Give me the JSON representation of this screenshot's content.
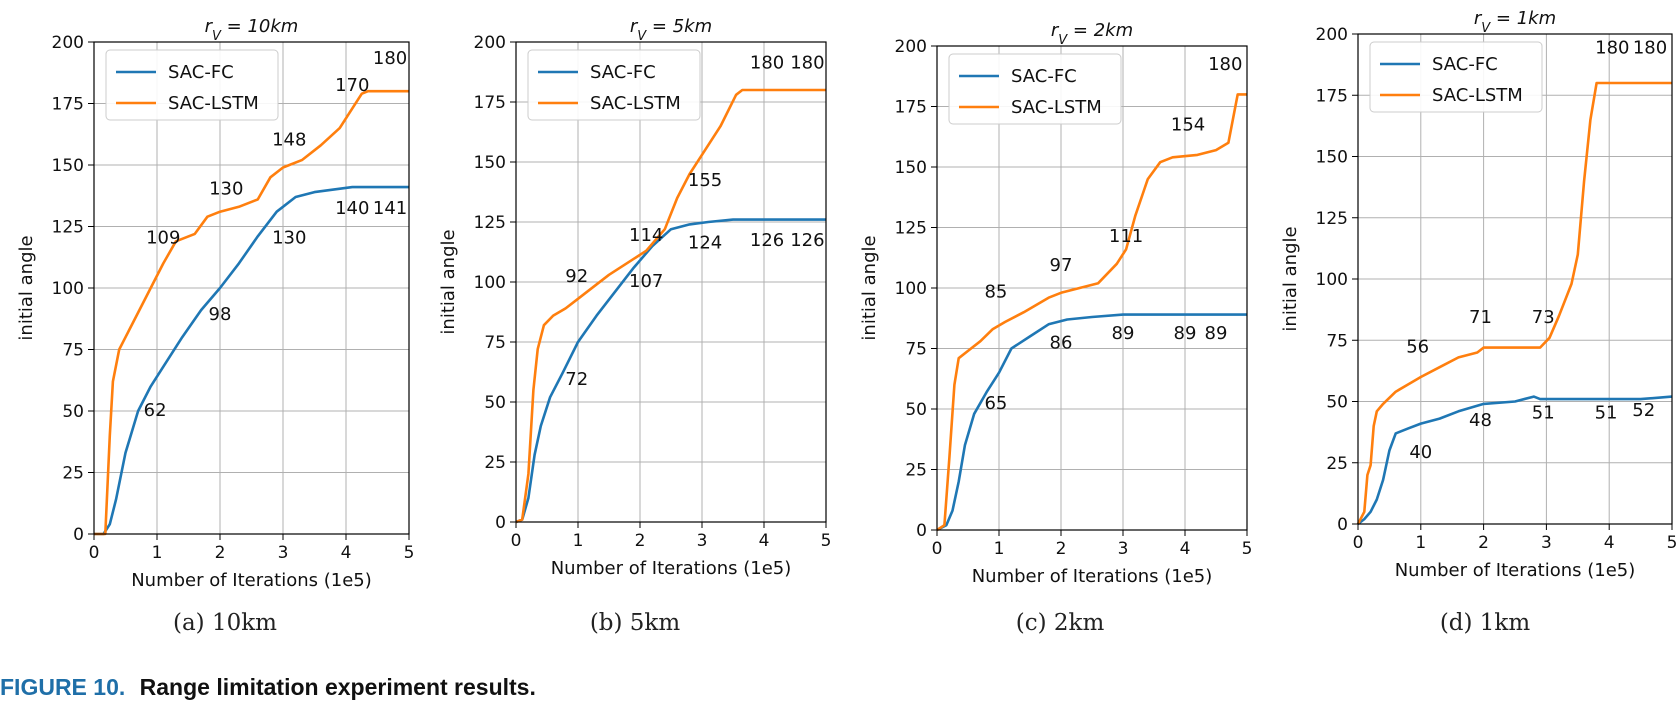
{
  "figure": {
    "caption_label": "FIGURE 10.",
    "caption_text": "Range limitation experiment results."
  },
  "colors": {
    "sac_fc": "#1f77b4",
    "sac_lstm": "#ff7f0e",
    "grid": "#b0b0b0",
    "axis": "#000000"
  },
  "chart_data": [
    {
      "type": "line",
      "subcaption": "(a)  10km",
      "title": "r_V = 10km",
      "xlabel": "Number of Iterations (1e5)",
      "ylabel": "initial angle",
      "xlim": [
        0,
        5
      ],
      "ylim": [
        0,
        200
      ],
      "xticks": [
        0,
        1,
        2,
        3,
        4,
        5
      ],
      "yticks": [
        0,
        25,
        50,
        75,
        100,
        125,
        150,
        175,
        200
      ],
      "grid": true,
      "legend": "top-left",
      "series": [
        {
          "name": "SAC-FC",
          "x": [
            0,
            0.15,
            0.25,
            0.35,
            0.5,
            0.7,
            0.9,
            1.1,
            1.4,
            1.7,
            2.0,
            2.3,
            2.6,
            2.9,
            3.2,
            3.5,
            3.8,
            4.1,
            4.5,
            5.0
          ],
          "y": [
            0,
            0,
            4,
            14,
            33,
            50,
            60,
            68,
            80,
            91,
            100,
            110,
            121,
            131,
            137,
            139,
            140,
            141,
            141,
            141
          ]
        },
        {
          "name": "SAC-LSTM",
          "x": [
            0,
            0.18,
            0.25,
            0.3,
            0.4,
            0.5,
            0.7,
            0.9,
            1.1,
            1.3,
            1.6,
            1.8,
            2.0,
            2.3,
            2.6,
            2.8,
            3.0,
            3.3,
            3.6,
            3.9,
            4.1,
            4.25,
            4.35,
            4.6,
            5.0
          ],
          "y": [
            0,
            0,
            40,
            62,
            75,
            80,
            90,
            100,
            110,
            119,
            122,
            129,
            131,
            133,
            136,
            145,
            149,
            152,
            158,
            165,
            173,
            179,
            180,
            180,
            180
          ]
        }
      ],
      "annotations": [
        {
          "text": "62",
          "x": 0.97,
          "y": 48
        },
        {
          "text": "98",
          "x": 2.0,
          "y": 87
        },
        {
          "text": "109",
          "x": 1.1,
          "y": 118
        },
        {
          "text": "130",
          "x": 2.1,
          "y": 138
        },
        {
          "text": "130",
          "x": 3.1,
          "y": 118
        },
        {
          "text": "148",
          "x": 3.1,
          "y": 158
        },
        {
          "text": "170",
          "x": 4.1,
          "y": 180
        },
        {
          "text": "140",
          "x": 4.1,
          "y": 130
        },
        {
          "text": "141",
          "x": 4.7,
          "y": 130
        },
        {
          "text": "180",
          "x": 4.7,
          "y": 191
        }
      ]
    },
    {
      "type": "line",
      "subcaption": "(b)  5km",
      "title": "r_V = 5km",
      "xlabel": "Number of Iterations (1e5)",
      "ylabel": "initial angle",
      "xlim": [
        0,
        5
      ],
      "ylim": [
        0,
        200
      ],
      "xticks": [
        0,
        1,
        2,
        3,
        4,
        5
      ],
      "yticks": [
        0,
        25,
        50,
        75,
        100,
        125,
        150,
        175,
        200
      ],
      "grid": true,
      "legend": "top-left",
      "series": [
        {
          "name": "SAC-FC",
          "x": [
            0,
            0.1,
            0.2,
            0.3,
            0.4,
            0.55,
            0.75,
            1.0,
            1.3,
            1.6,
            1.9,
            2.2,
            2.5,
            2.8,
            3.1,
            3.5,
            4.0,
            5.0
          ],
          "y": [
            0,
            1,
            10,
            28,
            40,
            52,
            62,
            75,
            86,
            96,
            106,
            115,
            122,
            124,
            125,
            126,
            126,
            126
          ]
        },
        {
          "name": "SAC-LSTM",
          "x": [
            0,
            0.1,
            0.2,
            0.28,
            0.35,
            0.45,
            0.6,
            0.8,
            1.0,
            1.2,
            1.5,
            1.8,
            2.1,
            2.4,
            2.6,
            2.8,
            3.0,
            3.3,
            3.55,
            3.65,
            4.0,
            5.0
          ],
          "y": [
            0,
            1,
            20,
            55,
            72,
            82,
            86,
            89,
            93,
            97,
            103,
            108,
            113,
            122,
            135,
            145,
            153,
            165,
            178,
            180,
            180,
            180
          ]
        }
      ],
      "annotations": [
        {
          "text": "72",
          "x": 0.98,
          "y": 57
        },
        {
          "text": "92",
          "x": 0.98,
          "y": 100
        },
        {
          "text": "107",
          "x": 2.1,
          "y": 98
        },
        {
          "text": "114",
          "x": 2.1,
          "y": 117
        },
        {
          "text": "155",
          "x": 3.05,
          "y": 140
        },
        {
          "text": "124",
          "x": 3.05,
          "y": 114
        },
        {
          "text": "126",
          "x": 4.05,
          "y": 115
        },
        {
          "text": "126",
          "x": 4.7,
          "y": 115
        },
        {
          "text": "180",
          "x": 4.05,
          "y": 189
        },
        {
          "text": "180",
          "x": 4.7,
          "y": 189
        }
      ]
    },
    {
      "type": "line",
      "subcaption": "(c)  2km",
      "title": "r_V = 2km",
      "xlabel": "Number of Iterations (1e5)",
      "ylabel": "initial angle",
      "xlim": [
        0,
        5
      ],
      "ylim": [
        0,
        200
      ],
      "xticks": [
        0,
        1,
        2,
        3,
        4,
        5
      ],
      "yticks": [
        0,
        25,
        50,
        75,
        100,
        125,
        150,
        175,
        200
      ],
      "grid": true,
      "legend": "top-left",
      "series": [
        {
          "name": "SAC-FC",
          "x": [
            0,
            0.15,
            0.25,
            0.35,
            0.45,
            0.6,
            0.8,
            1.0,
            1.2,
            1.5,
            1.8,
            2.1,
            2.5,
            3.0,
            3.5,
            4.0,
            5.0
          ],
          "y": [
            0,
            2,
            8,
            20,
            35,
            48,
            57,
            65,
            75,
            80,
            85,
            87,
            88,
            89,
            89,
            89,
            89
          ]
        },
        {
          "name": "SAC-LSTM",
          "x": [
            0,
            0.12,
            0.2,
            0.28,
            0.35,
            0.5,
            0.7,
            0.9,
            1.1,
            1.4,
            1.8,
            2.0,
            2.3,
            2.6,
            2.9,
            3.05,
            3.2,
            3.4,
            3.6,
            3.8,
            4.2,
            4.5,
            4.7,
            4.85,
            5.0
          ],
          "y": [
            0,
            2,
            30,
            60,
            71,
            74,
            78,
            83,
            86,
            90,
            96,
            98,
            100,
            102,
            110,
            116,
            130,
            145,
            152,
            154,
            155,
            157,
            160,
            180,
            180
          ]
        }
      ],
      "annotations": [
        {
          "text": "65",
          "x": 0.95,
          "y": 50
        },
        {
          "text": "85",
          "x": 0.95,
          "y": 96
        },
        {
          "text": "86",
          "x": 2.0,
          "y": 75
        },
        {
          "text": "97",
          "x": 2.0,
          "y": 107
        },
        {
          "text": "89",
          "x": 3.0,
          "y": 79
        },
        {
          "text": "111",
          "x": 3.05,
          "y": 119
        },
        {
          "text": "89",
          "x": 4.0,
          "y": 79
        },
        {
          "text": "89",
          "x": 4.5,
          "y": 79
        },
        {
          "text": "154",
          "x": 4.05,
          "y": 165
        },
        {
          "text": "180",
          "x": 4.65,
          "y": 190
        }
      ]
    },
    {
      "type": "line",
      "subcaption": "(d)  1km",
      "title": "r_V = 1km",
      "xlabel": "Number of Iterations (1e5)",
      "ylabel": "initial angle",
      "xlim": [
        0,
        5
      ],
      "ylim": [
        0,
        200
      ],
      "xticks": [
        0,
        1,
        2,
        3,
        4,
        5
      ],
      "yticks": [
        0,
        25,
        50,
        75,
        100,
        125,
        150,
        175,
        200
      ],
      "grid": true,
      "legend": "top-left",
      "series": [
        {
          "name": "SAC-FC",
          "x": [
            0,
            0.1,
            0.2,
            0.3,
            0.4,
            0.5,
            0.6,
            0.8,
            1.0,
            1.3,
            1.6,
            2.0,
            2.5,
            2.8,
            2.9,
            3.2,
            3.5,
            4.0,
            4.5,
            5.0
          ],
          "y": [
            0,
            2,
            5,
            10,
            18,
            30,
            37,
            39,
            41,
            43,
            46,
            49,
            50,
            52,
            51,
            51,
            51,
            51,
            51,
            52
          ]
        },
        {
          "name": "SAC-LSTM",
          "x": [
            0,
            0.1,
            0.15,
            0.2,
            0.25,
            0.3,
            0.4,
            0.6,
            0.8,
            1.0,
            1.3,
            1.6,
            1.9,
            2.0,
            2.5,
            2.9,
            3.05,
            3.2,
            3.4,
            3.5,
            3.6,
            3.7,
            3.8,
            4.0,
            5.0
          ],
          "y": [
            0,
            5,
            20,
            24,
            40,
            46,
            49,
            54,
            57,
            60,
            64,
            68,
            70,
            72,
            72,
            72,
            76,
            85,
            98,
            110,
            140,
            165,
            180,
            180,
            180
          ]
        }
      ],
      "annotations": [
        {
          "text": "40",
          "x": 1.0,
          "y": 27
        },
        {
          "text": "56",
          "x": 0.95,
          "y": 70
        },
        {
          "text": "48",
          "x": 1.95,
          "y": 40
        },
        {
          "text": "71",
          "x": 1.95,
          "y": 82
        },
        {
          "text": "51",
          "x": 2.95,
          "y": 43
        },
        {
          "text": "73",
          "x": 2.95,
          "y": 82
        },
        {
          "text": "51",
          "x": 3.95,
          "y": 43
        },
        {
          "text": "52",
          "x": 4.55,
          "y": 44
        },
        {
          "text": "180",
          "x": 4.05,
          "y": 192
        },
        {
          "text": "180",
          "x": 4.65,
          "y": 192
        }
      ]
    }
  ]
}
